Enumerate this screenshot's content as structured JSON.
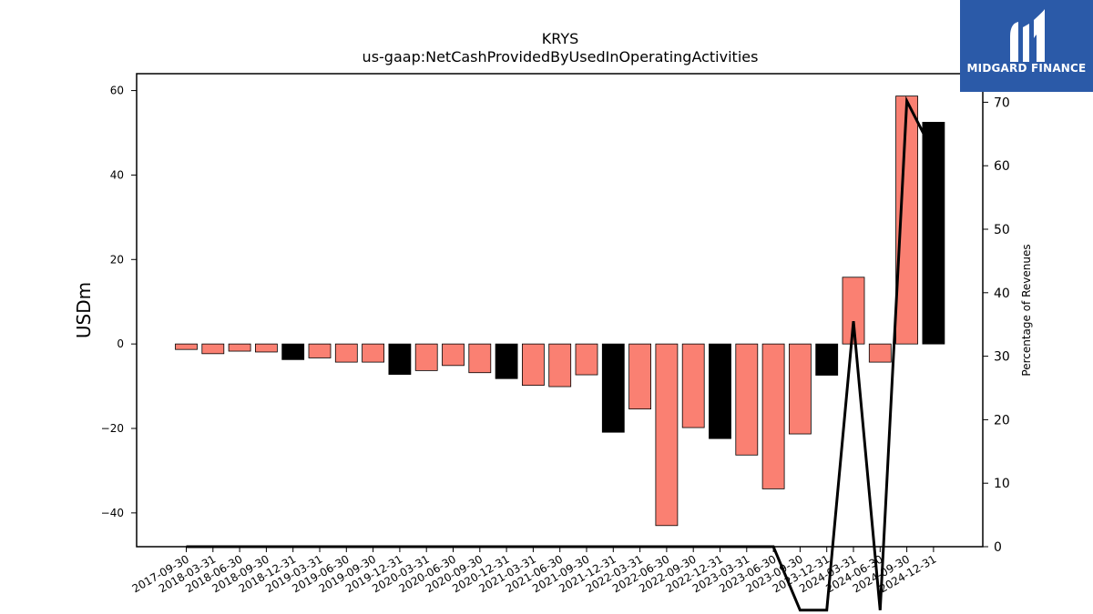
{
  "chart_data": {
    "type": "bar",
    "title": "KRYS",
    "subtitle": "us-gaap:NetCashProvidedByUsedInOperatingActivities",
    "ylabel": "USDm",
    "y2label": "Percentage of Revenues",
    "ylim": [
      -48,
      64
    ],
    "y2lim": [
      0,
      74.5
    ],
    "yticks": [
      60,
      40,
      20,
      0,
      -20,
      -40
    ],
    "y2ticks": [
      0,
      10,
      20,
      30,
      40,
      50,
      60,
      70
    ],
    "categories": [
      "2017-09-30",
      "2018-03-31",
      "2018-06-30",
      "2018-09-30",
      "2018-12-31",
      "2019-03-31",
      "2019-06-30",
      "2019-09-30",
      "2019-12-31",
      "2020-03-31",
      "2020-06-30",
      "2020-09-30",
      "2020-12-31",
      "2021-03-31",
      "2021-06-30",
      "2021-09-30",
      "2021-12-31",
      "2022-03-31",
      "2022-06-30",
      "2022-09-30",
      "2022-12-31",
      "2023-03-31",
      "2023-06-30",
      "2023-09-30",
      "2023-12-31",
      "2024-03-31",
      "2024-06-30",
      "2024-09-30",
      "2024-12-31"
    ],
    "series": [
      {
        "values": [
          -1.3,
          -2.3,
          -1.7,
          -1.9,
          -3.7,
          -3.3,
          -4.3,
          -4.3,
          -7.2,
          -6.3,
          -5.1,
          -6.8,
          -8.2,
          -9.8,
          -10.1,
          -7.3,
          -20.9,
          -15.4,
          -43.0,
          -19.8,
          -22.4,
          -26.3,
          -34.3,
          -21.3,
          -7.4,
          15.8,
          -4.3,
          58.7,
          52.5
        ],
        "colors": [
          "salmon",
          "salmon",
          "salmon",
          "salmon",
          "black",
          "salmon",
          "salmon",
          "salmon",
          "black",
          "salmon",
          "salmon",
          "salmon",
          "black",
          "salmon",
          "salmon",
          "salmon",
          "black",
          "salmon",
          "salmon",
          "salmon",
          "black",
          "salmon",
          "salmon",
          "salmon",
          "black",
          "salmon",
          "salmon",
          "salmon",
          "black"
        ]
      },
      {
        "type": "line",
        "axis": "secondary",
        "values": [
          0,
          0,
          0,
          0,
          0,
          0,
          0,
          0,
          0,
          0,
          0,
          0,
          0,
          0,
          0,
          0,
          0,
          0,
          0,
          0,
          0,
          0,
          0,
          -10,
          -10,
          35.5,
          -10,
          70.2,
          62.0
        ]
      }
    ],
    "colors": {
      "salmon": "#fa8072",
      "black": "#000000",
      "line": "#000000"
    }
  },
  "logo": {
    "text": "MIDGARD FINANCE"
  }
}
